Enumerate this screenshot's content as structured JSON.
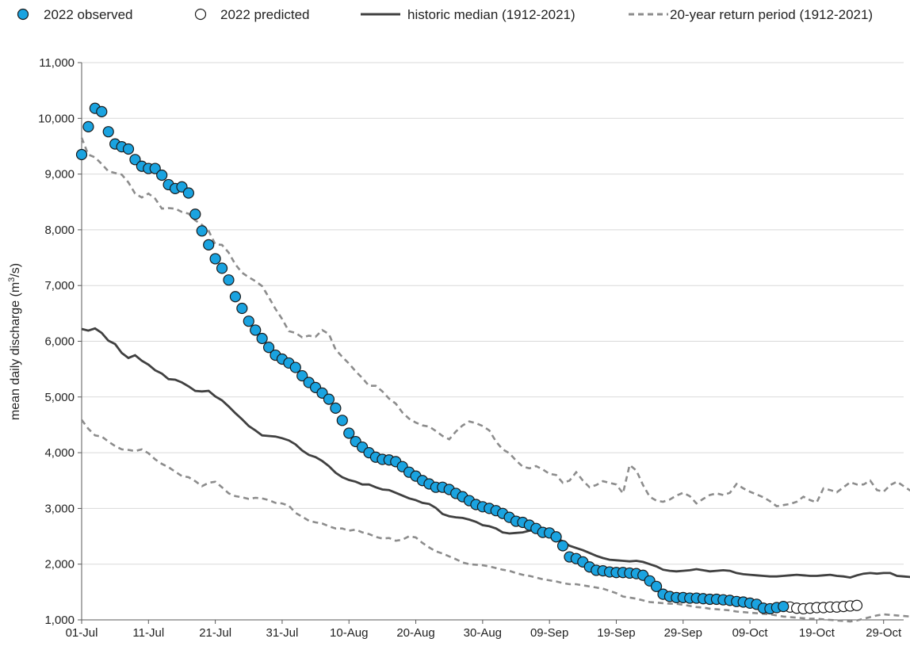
{
  "chart_data": {
    "type": "line",
    "xlabel": "",
    "ylabel_parts": [
      "mean daily discharge (m",
      "3",
      "/s)"
    ],
    "ylim": [
      1000,
      11000
    ],
    "y_ticks": [
      1000,
      2000,
      3000,
      4000,
      5000,
      6000,
      7000,
      8000,
      9000,
      10000,
      11000
    ],
    "y_tick_labels": [
      "1,000",
      "2,000",
      "3,000",
      "4,000",
      "5,000",
      "6,000",
      "7,000",
      "8,000",
      "9,000",
      "10,000",
      "11,000"
    ],
    "x_range_days": [
      0,
      123
    ],
    "x_ticks": [
      0,
      10,
      20,
      30,
      40,
      50,
      60,
      70,
      80,
      90,
      100,
      110,
      120
    ],
    "x_tick_labels": [
      "01-Jul",
      "11-Jul",
      "21-Jul",
      "31-Jul",
      "10-Aug",
      "20-Aug",
      "30-Aug",
      "09-Sep",
      "19-Sep",
      "29-Sep",
      "09-Oct",
      "19-Oct",
      "29-Oct"
    ],
    "grid": "horizontal",
    "legend_position": "top",
    "legend": [
      {
        "label": "2022 observed",
        "style": "filled-marker"
      },
      {
        "label": "2022 predicted",
        "style": "open-marker"
      },
      {
        "label": "historic median (1912-2021)",
        "style": "solid-line"
      },
      {
        "label": "20-year return period (1912-2021)",
        "style": "dashed-line"
      }
    ],
    "colors": {
      "observed_fill": "#1aa3e0",
      "observed_edge": "#1a1a1a",
      "median": "#404040",
      "return_period": "#8c8c8c",
      "grid": "#d9d9d9"
    },
    "series": [
      {
        "name": "2022 observed",
        "start_day": 0,
        "values": [
          9350,
          9850,
          10180,
          10120,
          9760,
          9540,
          9490,
          9450,
          9260,
          9140,
          9100,
          9100,
          8980,
          8810,
          8740,
          8770,
          8660,
          8280,
          7980,
          7730,
          7480,
          7310,
          7100,
          6800,
          6590,
          6360,
          6200,
          6050,
          5890,
          5750,
          5680,
          5610,
          5530,
          5380,
          5260,
          5170,
          5070,
          4960,
          4800,
          4580,
          4350,
          4200,
          4100,
          4000,
          3920,
          3880,
          3870,
          3840,
          3750,
          3650,
          3580,
          3500,
          3440,
          3380,
          3380,
          3340,
          3270,
          3210,
          3140,
          3070,
          3030,
          3000,
          2960,
          2910,
          2840,
          2770,
          2750,
          2700,
          2640,
          2570,
          2560,
          2490,
          2330,
          2130,
          2100,
          2040,
          1950,
          1890,
          1880,
          1860,
          1850,
          1850,
          1840,
          1830,
          1800,
          1700,
          1600,
          1460,
          1420,
          1400,
          1400,
          1390,
          1390,
          1380,
          1370,
          1370,
          1360,
          1350,
          1330,
          1320,
          1300,
          1280,
          1210,
          1200,
          1220,
          1240
        ]
      },
      {
        "name": "2022 predicted",
        "start_day": 106,
        "values": [
          1230,
          1210,
          1200,
          1210,
          1220,
          1220,
          1230,
          1230,
          1240,
          1250,
          1260
        ]
      },
      {
        "name": "historic median (1912-2021)",
        "start_day": 0,
        "values": [
          6220,
          6190,
          6230,
          6150,
          6010,
          5950,
          5790,
          5700,
          5750,
          5650,
          5580,
          5480,
          5420,
          5320,
          5310,
          5260,
          5190,
          5110,
          5100,
          5110,
          5010,
          4940,
          4830,
          4710,
          4600,
          4480,
          4400,
          4310,
          4300,
          4290,
          4260,
          4220,
          4150,
          4040,
          3960,
          3920,
          3850,
          3760,
          3640,
          3560,
          3510,
          3480,
          3430,
          3430,
          3380,
          3340,
          3330,
          3280,
          3230,
          3180,
          3150,
          3100,
          3080,
          3010,
          2900,
          2860,
          2840,
          2830,
          2800,
          2760,
          2700,
          2680,
          2640,
          2570,
          2550,
          2560,
          2570,
          2600,
          2610,
          2590,
          2550,
          2470,
          2410,
          2330,
          2290,
          2250,
          2200,
          2150,
          2110,
          2080,
          2070,
          2060,
          2050,
          2060,
          2040,
          2000,
          1960,
          1900,
          1880,
          1870,
          1880,
          1890,
          1910,
          1890,
          1870,
          1880,
          1890,
          1880,
          1840,
          1820,
          1810,
          1800,
          1790,
          1780,
          1780,
          1790,
          1800,
          1810,
          1800,
          1790,
          1790,
          1800,
          1810,
          1790,
          1780,
          1760,
          1800,
          1830,
          1840,
          1830,
          1840,
          1840,
          1790,
          1780,
          1770
        ]
      },
      {
        "name": "20-year return period (1912-2021) upper",
        "start_day": 0,
        "values": [
          9650,
          9350,
          9300,
          9180,
          9050,
          9020,
          8990,
          8850,
          8650,
          8580,
          8650,
          8560,
          8380,
          8390,
          8380,
          8320,
          8290,
          8170,
          8090,
          7980,
          7740,
          7730,
          7590,
          7380,
          7230,
          7150,
          7080,
          6990,
          6790,
          6580,
          6400,
          6180,
          6150,
          6070,
          6100,
          6080,
          6200,
          6130,
          5850,
          5720,
          5600,
          5460,
          5340,
          5200,
          5200,
          5100,
          4970,
          4880,
          4720,
          4610,
          4540,
          4490,
          4470,
          4390,
          4300,
          4240,
          4380,
          4490,
          4560,
          4530,
          4480,
          4400,
          4200,
          4060,
          3990,
          3860,
          3750,
          3720,
          3760,
          3700,
          3620,
          3600,
          3460,
          3500,
          3650,
          3500,
          3380,
          3420,
          3490,
          3460,
          3430,
          3270,
          3780,
          3680,
          3420,
          3210,
          3140,
          3120,
          3160,
          3230,
          3280,
          3220,
          3090,
          3170,
          3240,
          3270,
          3240,
          3280,
          3440,
          3360,
          3300,
          3250,
          3200,
          3130,
          3040,
          3060,
          3080,
          3120,
          3210,
          3150,
          3110,
          3360,
          3330,
          3290,
          3380,
          3470,
          3430,
          3430,
          3500,
          3330,
          3300,
          3420,
          3480,
          3400,
          3320
        ]
      },
      {
        "name": "20-year return period (1912-2021) lower",
        "start_day": 0,
        "values": [
          4590,
          4430,
          4310,
          4290,
          4200,
          4120,
          4060,
          4050,
          4030,
          4060,
          3990,
          3880,
          3800,
          3740,
          3660,
          3580,
          3560,
          3490,
          3400,
          3460,
          3480,
          3380,
          3270,
          3220,
          3200,
          3170,
          3190,
          3180,
          3150,
          3100,
          3090,
          3050,
          2920,
          2850,
          2780,
          2750,
          2730,
          2680,
          2640,
          2640,
          2600,
          2620,
          2570,
          2540,
          2490,
          2460,
          2470,
          2420,
          2440,
          2500,
          2480,
          2380,
          2300,
          2230,
          2190,
          2140,
          2090,
          2030,
          2000,
          1990,
          1980,
          1960,
          1930,
          1900,
          1880,
          1840,
          1810,
          1790,
          1760,
          1730,
          1710,
          1690,
          1660,
          1640,
          1640,
          1620,
          1600,
          1580,
          1560,
          1520,
          1480,
          1420,
          1400,
          1380,
          1350,
          1320,
          1310,
          1300,
          1290,
          1290,
          1270,
          1250,
          1230,
          1220,
          1200,
          1190,
          1180,
          1170,
          1150,
          1140,
          1130,
          1120,
          1110,
          1100,
          1080,
          1060,
          1050,
          1040,
          1030,
          1020,
          1020,
          1010,
          1000,
          990,
          980,
          970,
          990,
          1020,
          1050,
          1080,
          1100,
          1090,
          1080,
          1070,
          1060
        ]
      }
    ]
  }
}
